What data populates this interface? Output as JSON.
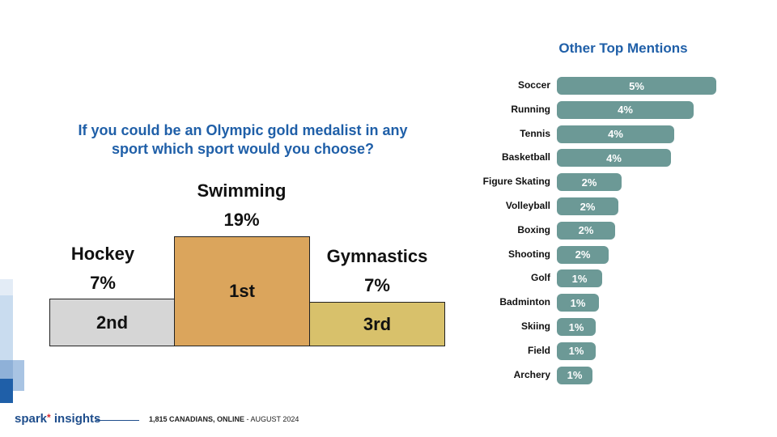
{
  "question": "If you could be an Olympic gold medalist in any sport which sport would you choose?",
  "podium": [
    {
      "rank": "2nd",
      "sport": "Hockey",
      "pct": "7%",
      "color": "#d6d6d6"
    },
    {
      "rank": "1st",
      "sport": "Swimming",
      "pct": "19%",
      "color": "#dba55c"
    },
    {
      "rank": "3rd",
      "sport": "Gymnastics",
      "pct": "7%",
      "color": "#d8c16b"
    }
  ],
  "chart_data": {
    "type": "bar",
    "orientation": "horizontal",
    "title": "Other Top Mentions",
    "categories": [
      "Soccer",
      "Running",
      "Tennis",
      "Basketball",
      "Figure Skating",
      "Volleyball",
      "Boxing",
      "Shooting",
      "Golf",
      "Badminton",
      "Skiing",
      "Field",
      "Archery"
    ],
    "values": [
      5,
      4,
      4,
      4,
      2,
      2,
      2,
      2,
      1,
      1,
      1,
      1,
      1
    ],
    "value_labels": [
      "5%",
      "4%",
      "4%",
      "4%",
      "2%",
      "2%",
      "2%",
      "2%",
      "1%",
      "1%",
      "1%",
      "1%",
      "1%"
    ],
    "bar_color": "#6c9996"
  },
  "footer": {
    "brand_part1": "spark",
    "brand_star": "*",
    "brand_part2": " insights",
    "sample": "1,815 CANADIANS, ONLINE",
    "date": " - AUGUST 2024"
  }
}
